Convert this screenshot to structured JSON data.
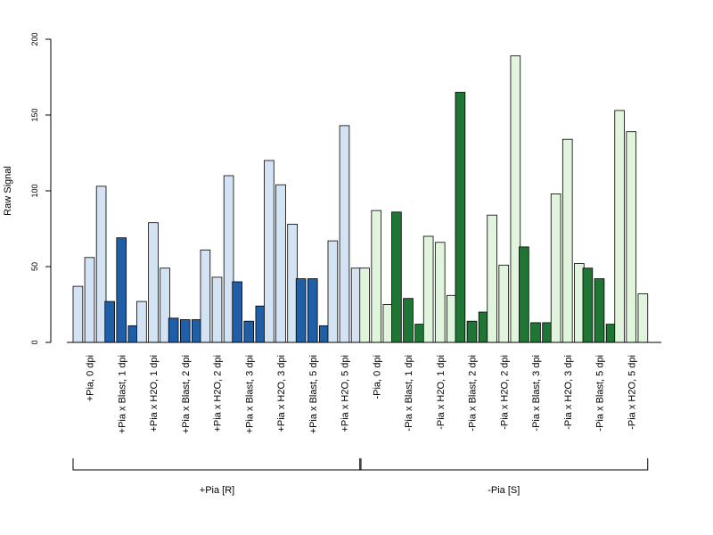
{
  "chart_data": {
    "type": "bar",
    "ylabel": "Raw Signal",
    "ylim": [
      0,
      200
    ],
    "yticks": [
      0,
      50,
      100,
      150,
      200
    ],
    "grid": false,
    "colors": {
      "pia_pos_light": "#d4e3f4",
      "pia_pos_dark": "#1f5fa8",
      "pia_neg_light": "#e1f5dc",
      "pia_neg_dark": "#1e7534",
      "outline": "#000000"
    },
    "categories": [
      {
        "label": "+Pia, 0 dpi",
        "values": [
          37,
          56,
          103
        ],
        "fill": "pia_pos_light"
      },
      {
        "label": "+Pia x Blast, 1 dpi",
        "values": [
          27,
          69,
          11
        ],
        "fill": "pia_pos_dark"
      },
      {
        "label": "+Pia x H2O, 1 dpi",
        "values": [
          27,
          79,
          49
        ],
        "fill": "pia_pos_light"
      },
      {
        "label": "+Pia x Blast, 2 dpi",
        "values": [
          16,
          15,
          15
        ],
        "fill": "pia_pos_dark"
      },
      {
        "label": "+Pia x H2O, 2 dpi",
        "values": [
          61,
          43,
          110
        ],
        "fill": "pia_pos_light"
      },
      {
        "label": "+Pia x Blast, 3 dpi",
        "values": [
          40,
          14,
          24
        ],
        "fill": "pia_pos_dark"
      },
      {
        "label": "+Pia x H2O, 3 dpi",
        "values": [
          120,
          104,
          78
        ],
        "fill": "pia_pos_light"
      },
      {
        "label": "+Pia x Blast, 5 dpi",
        "values": [
          42,
          42,
          11
        ],
        "fill": "pia_pos_dark"
      },
      {
        "label": "+Pia x H2O, 5 dpi",
        "values": [
          67,
          143,
          49
        ],
        "fill": "pia_pos_light"
      },
      {
        "label": "-Pia, 0 dpi",
        "values": [
          49,
          87,
          25
        ],
        "fill": "pia_neg_light"
      },
      {
        "label": "-Pia x Blast, 1 dpi",
        "values": [
          86,
          29,
          12
        ],
        "fill": "pia_neg_dark"
      },
      {
        "label": "-Pia x H2O, 1 dpi",
        "values": [
          70,
          66,
          31
        ],
        "fill": "pia_neg_light"
      },
      {
        "label": "-Pia x Blast, 2 dpi",
        "values": [
          165,
          14,
          20
        ],
        "fill": "pia_neg_dark"
      },
      {
        "label": "-Pia x H2O, 2 dpi",
        "values": [
          84,
          51,
          189
        ],
        "fill": "pia_neg_light"
      },
      {
        "label": "-Pia x Blast, 3 dpi",
        "values": [
          63,
          13,
          13
        ],
        "fill": "pia_neg_dark"
      },
      {
        "label": "-Pia x H2O, 3 dpi",
        "values": [
          98,
          134,
          52
        ],
        "fill": "pia_neg_light"
      },
      {
        "label": "-Pia x Blast, 5 dpi",
        "values": [
          49,
          42,
          12
        ],
        "fill": "pia_neg_dark"
      },
      {
        "label": "-Pia x H2O, 5 dpi",
        "values": [
          153,
          139,
          32
        ],
        "fill": "pia_neg_light"
      }
    ],
    "groups": [
      {
        "label": "+Pia [R]",
        "first": 0,
        "last": 8
      },
      {
        "label": "-Pia [S]",
        "first": 9,
        "last": 17
      }
    ]
  }
}
